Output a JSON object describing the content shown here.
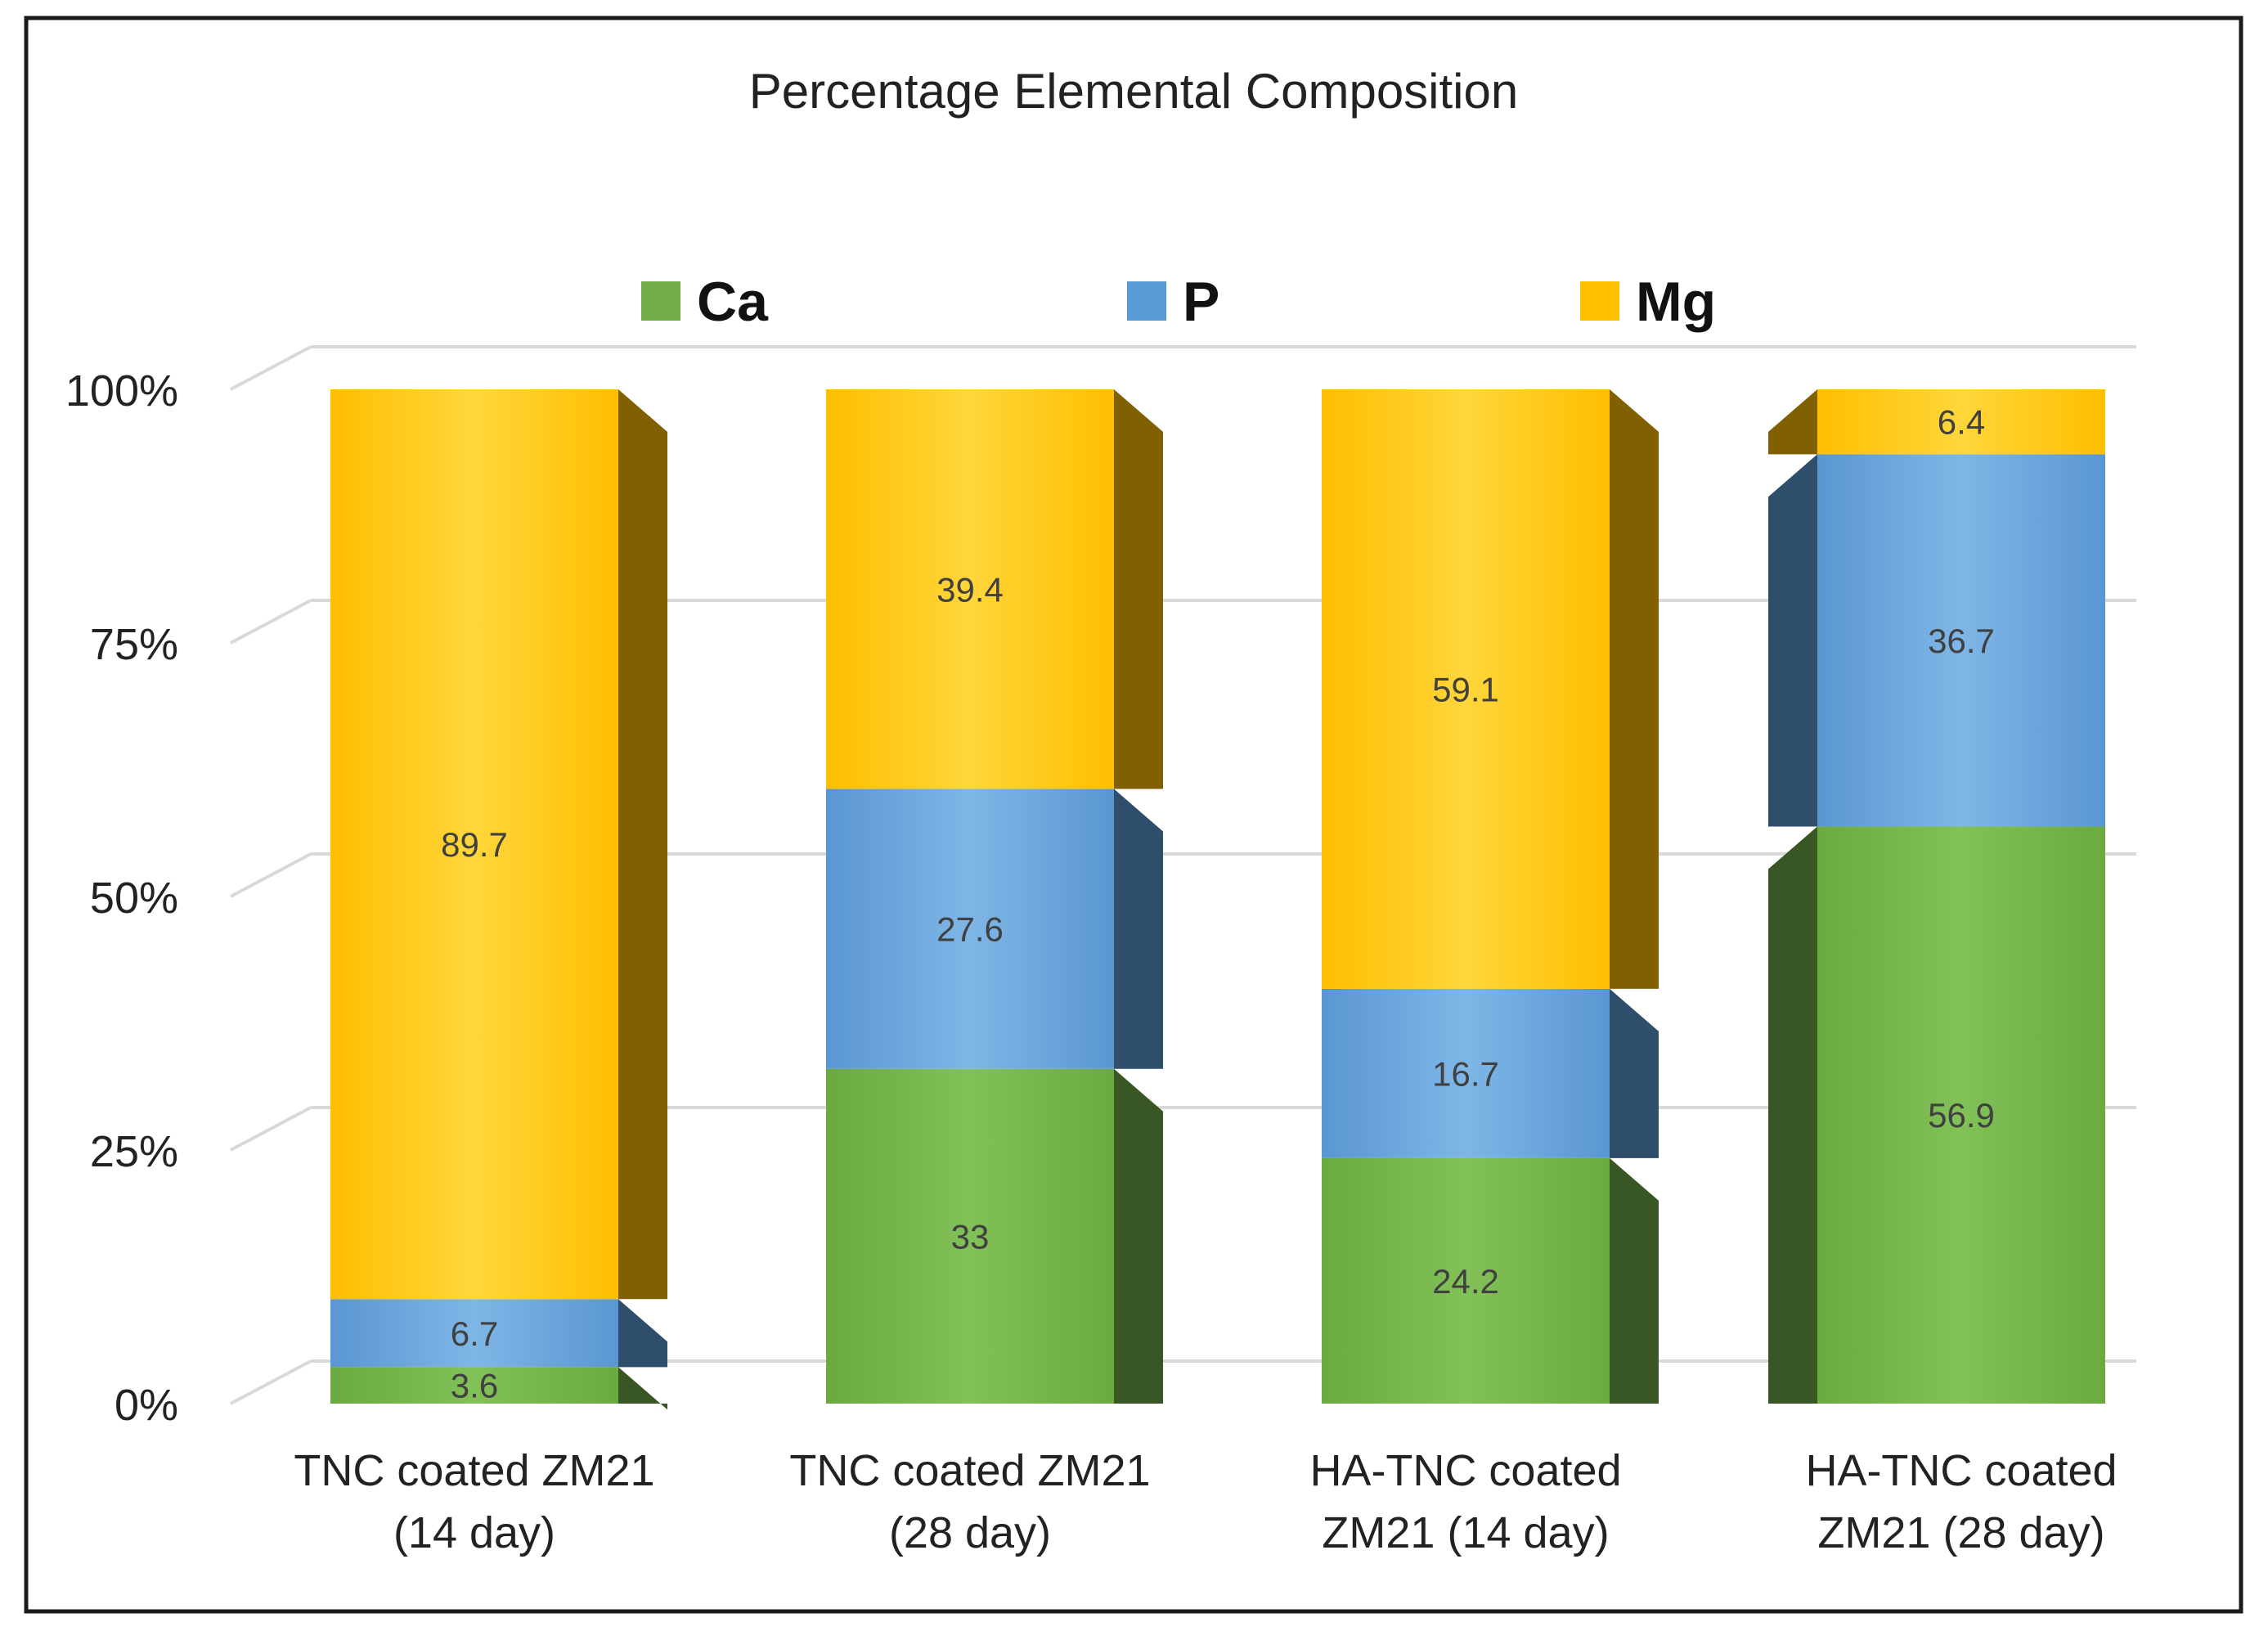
{
  "chart_data": {
    "type": "bar",
    "stacked": true,
    "normalized": true,
    "title": "Percentage Elemental Composition",
    "categories": [
      [
        "TNC coated ZM21",
        "(14 day)"
      ],
      [
        "TNC coated ZM21",
        "(28 day)"
      ],
      [
        "HA-TNC coated",
        "ZM21 (14 day)"
      ],
      [
        "HA-TNC coated",
        "ZM21 (28 day)"
      ]
    ],
    "series": [
      {
        "name": "Ca",
        "color": "#70AD47",
        "values": [
          3.6,
          33,
          24.2,
          56.9
        ]
      },
      {
        "name": "P",
        "color": "#5B9BD5",
        "values": [
          6.7,
          27.6,
          16.7,
          36.7
        ]
      },
      {
        "name": "Mg",
        "color": "#FFC000",
        "values": [
          89.7,
          39.4,
          59.1,
          6.4
        ]
      }
    ],
    "y_ticks": [
      "0%",
      "25%",
      "50%",
      "75%",
      "100%"
    ],
    "ylim": [
      0,
      100
    ],
    "legend_position": "top",
    "grid": true
  }
}
